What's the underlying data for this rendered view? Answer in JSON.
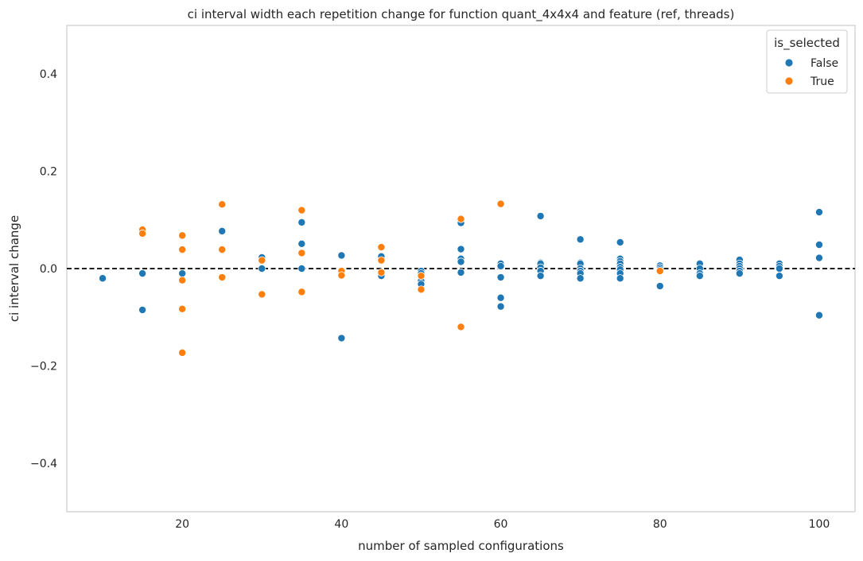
{
  "chart_data": {
    "type": "scatter",
    "title": "ci interval width each repetition change for function quant_4x4x4 and feature (ref, threads)",
    "xlabel": "number of sampled configurations",
    "ylabel": "ci interval change",
    "xlim": [
      5.5,
      104.5
    ],
    "ylim": [
      -0.5,
      0.5
    ],
    "xticks": [
      20,
      40,
      60,
      80,
      100
    ],
    "yticks": [
      -0.4,
      -0.2,
      0.0,
      0.2,
      0.4
    ],
    "ytick_labels": [
      "−0.4",
      "−0.2",
      "0.0",
      "0.2",
      "0.4"
    ],
    "grid": false,
    "reference_line": {
      "y": 0.0,
      "style": "dashed",
      "color": "#000000"
    },
    "legend": {
      "title": "is_selected",
      "position": "top-right"
    },
    "series": [
      {
        "name": "False",
        "color": "#1f77b4",
        "points": [
          [
            10,
            -0.02
          ],
          [
            15,
            -0.01
          ],
          [
            15,
            -0.085
          ],
          [
            20,
            -0.01
          ],
          [
            25,
            0.077
          ],
          [
            30,
            0.023
          ],
          [
            30,
            0.0
          ],
          [
            35,
            0.095
          ],
          [
            35,
            0.051
          ],
          [
            35,
            0.0
          ],
          [
            40,
            0.027
          ],
          [
            40,
            -0.143
          ],
          [
            45,
            0.025
          ],
          [
            45,
            -0.015
          ],
          [
            50,
            -0.005
          ],
          [
            50,
            -0.01
          ],
          [
            50,
            -0.025
          ],
          [
            50,
            -0.032
          ],
          [
            55,
            0.094
          ],
          [
            55,
            0.04
          ],
          [
            55,
            0.02
          ],
          [
            55,
            0.014
          ],
          [
            55,
            -0.008
          ],
          [
            60,
            0.01
          ],
          [
            60,
            0.005
          ],
          [
            60,
            -0.018
          ],
          [
            60,
            -0.06
          ],
          [
            60,
            -0.078
          ],
          [
            65,
            0.108
          ],
          [
            65,
            0.012
          ],
          [
            65,
            0.01
          ],
          [
            65,
            0.002
          ],
          [
            65,
            -0.005
          ],
          [
            65,
            -0.015
          ],
          [
            70,
            0.06
          ],
          [
            70,
            0.012
          ],
          [
            70,
            0.01
          ],
          [
            70,
            0.0
          ],
          [
            70,
            -0.005
          ],
          [
            70,
            -0.01
          ],
          [
            70,
            -0.02
          ],
          [
            75,
            0.054
          ],
          [
            75,
            0.02
          ],
          [
            75,
            0.015
          ],
          [
            75,
            0.01
          ],
          [
            75,
            0.003
          ],
          [
            75,
            -0.002
          ],
          [
            75,
            -0.01
          ],
          [
            75,
            -0.02
          ],
          [
            80,
            0.006
          ],
          [
            80,
            0.002
          ],
          [
            80,
            -0.002
          ],
          [
            80,
            -0.036
          ],
          [
            85,
            0.01
          ],
          [
            85,
            0.0
          ],
          [
            85,
            -0.01
          ],
          [
            85,
            -0.015
          ],
          [
            90,
            0.018
          ],
          [
            90,
            0.01
          ],
          [
            90,
            0.005
          ],
          [
            90,
            0.0
          ],
          [
            90,
            -0.005
          ],
          [
            90,
            -0.01
          ],
          [
            95,
            0.01
          ],
          [
            95,
            0.005
          ],
          [
            95,
            0.0
          ],
          [
            95,
            -0.015
          ],
          [
            100,
            0.116
          ],
          [
            100,
            0.049
          ],
          [
            100,
            0.022
          ],
          [
            100,
            -0.096
          ]
        ]
      },
      {
        "name": "True",
        "color": "#ff7f0e",
        "points": [
          [
            15,
            0.08
          ],
          [
            15,
            0.072
          ],
          [
            20,
            0.068
          ],
          [
            20,
            0.039
          ],
          [
            20,
            -0.024
          ],
          [
            20,
            -0.083
          ],
          [
            20,
            -0.173
          ],
          [
            25,
            0.132
          ],
          [
            25,
            0.039
          ],
          [
            25,
            -0.018
          ],
          [
            30,
            0.017
          ],
          [
            30,
            -0.053
          ],
          [
            35,
            0.12
          ],
          [
            35,
            0.032
          ],
          [
            35,
            -0.048
          ],
          [
            40,
            -0.005
          ],
          [
            40,
            -0.014
          ],
          [
            45,
            0.044
          ],
          [
            45,
            0.017
          ],
          [
            45,
            -0.008
          ],
          [
            50,
            -0.015
          ],
          [
            50,
            -0.043
          ],
          [
            55,
            0.102
          ],
          [
            55,
            -0.12
          ],
          [
            60,
            0.133
          ],
          [
            80,
            -0.005
          ]
        ]
      }
    ]
  }
}
